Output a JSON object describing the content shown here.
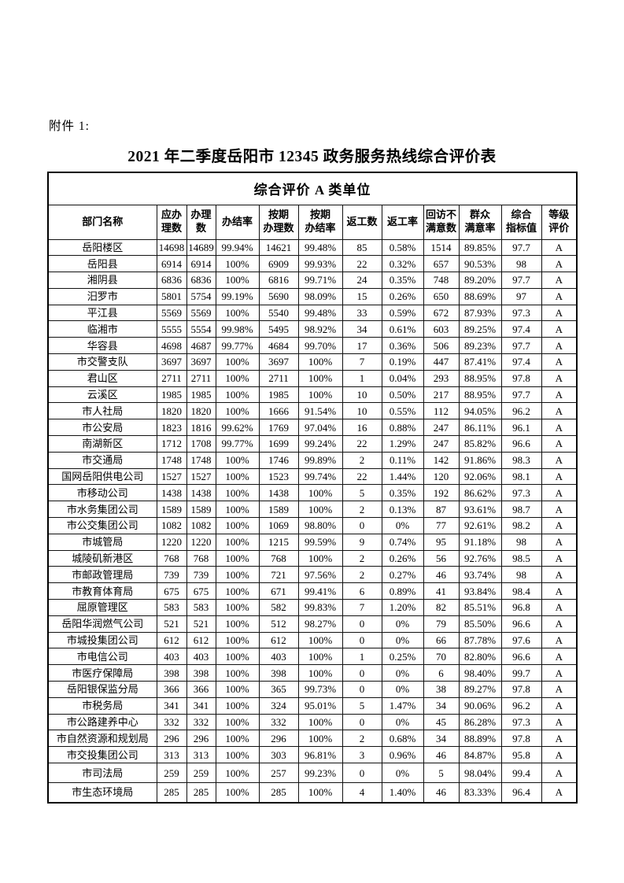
{
  "page": {
    "attachment_label": "附件 1:",
    "title": "2021 年二季度岳阳市 12345 政务服务热线综合评价表"
  },
  "table": {
    "group_header": "综合评价 A 类单位",
    "columns": [
      {
        "key": "department",
        "label": "部门名称"
      },
      {
        "key": "should_handle_count",
        "label": "应办\n理数"
      },
      {
        "key": "handled_count",
        "label": "办理\n数"
      },
      {
        "key": "completion_rate",
        "label": "办结率"
      },
      {
        "key": "ontime_handled_count",
        "label": "按期\n办理数"
      },
      {
        "key": "ontime_completion_rate",
        "label": "按期\n办结率"
      },
      {
        "key": "rework_count",
        "label": "返工数"
      },
      {
        "key": "rework_rate",
        "label": "返工率"
      },
      {
        "key": "revisit_unsatisfied",
        "label": "回访不\n满意数"
      },
      {
        "key": "satisfaction_rate",
        "label": "群众\n满意率"
      },
      {
        "key": "composite_index",
        "label": "综合\n指标值"
      },
      {
        "key": "grade",
        "label": "等级\n评价"
      }
    ],
    "rows": [
      [
        "岳阳楼区",
        "14698",
        "14689",
        "99.94%",
        "14621",
        "99.48%",
        "85",
        "0.58%",
        "1514",
        "89.85%",
        "97.7",
        "A"
      ],
      [
        "岳阳县",
        "6914",
        "6914",
        "100%",
        "6909",
        "99.93%",
        "22",
        "0.32%",
        "657",
        "90.53%",
        "98",
        "A"
      ],
      [
        "湘阴县",
        "6836",
        "6836",
        "100%",
        "6816",
        "99.71%",
        "24",
        "0.35%",
        "748",
        "89.20%",
        "97.7",
        "A"
      ],
      [
        "汨罗市",
        "5801",
        "5754",
        "99.19%",
        "5690",
        "98.09%",
        "15",
        "0.26%",
        "650",
        "88.69%",
        "97",
        "A"
      ],
      [
        "平江县",
        "5569",
        "5569",
        "100%",
        "5540",
        "99.48%",
        "33",
        "0.59%",
        "672",
        "87.93%",
        "97.3",
        "A"
      ],
      [
        "临湘市",
        "5555",
        "5554",
        "99.98%",
        "5495",
        "98.92%",
        "34",
        "0.61%",
        "603",
        "89.25%",
        "97.4",
        "A"
      ],
      [
        "华容县",
        "4698",
        "4687",
        "99.77%",
        "4684",
        "99.70%",
        "17",
        "0.36%",
        "506",
        "89.23%",
        "97.7",
        "A"
      ],
      [
        "市交警支队",
        "3697",
        "3697",
        "100%",
        "3697",
        "100%",
        "7",
        "0.19%",
        "447",
        "87.41%",
        "97.4",
        "A"
      ],
      [
        "君山区",
        "2711",
        "2711",
        "100%",
        "2711",
        "100%",
        "1",
        "0.04%",
        "293",
        "88.95%",
        "97.8",
        "A"
      ],
      [
        "云溪区",
        "1985",
        "1985",
        "100%",
        "1985",
        "100%",
        "10",
        "0.50%",
        "217",
        "88.95%",
        "97.7",
        "A"
      ],
      [
        "市人社局",
        "1820",
        "1820",
        "100%",
        "1666",
        "91.54%",
        "10",
        "0.55%",
        "112",
        "94.05%",
        "96.2",
        "A"
      ],
      [
        "市公安局",
        "1823",
        "1816",
        "99.62%",
        "1769",
        "97.04%",
        "16",
        "0.88%",
        "247",
        "86.11%",
        "96.1",
        "A"
      ],
      [
        "南湖新区",
        "1712",
        "1708",
        "99.77%",
        "1699",
        "99.24%",
        "22",
        "1.29%",
        "247",
        "85.82%",
        "96.6",
        "A"
      ],
      [
        "市交通局",
        "1748",
        "1748",
        "100%",
        "1746",
        "99.89%",
        "2",
        "0.11%",
        "142",
        "91.86%",
        "98.3",
        "A"
      ],
      [
        "国网岳阳供电公司",
        "1527",
        "1527",
        "100%",
        "1523",
        "99.74%",
        "22",
        "1.44%",
        "120",
        "92.06%",
        "98.1",
        "A"
      ],
      [
        "市移动公司",
        "1438",
        "1438",
        "100%",
        "1438",
        "100%",
        "5",
        "0.35%",
        "192",
        "86.62%",
        "97.3",
        "A"
      ],
      [
        "市水务集团公司",
        "1589",
        "1589",
        "100%",
        "1589",
        "100%",
        "2",
        "0.13%",
        "87",
        "93.61%",
        "98.7",
        "A"
      ],
      [
        "市公交集团公司",
        "1082",
        "1082",
        "100%",
        "1069",
        "98.80%",
        "0",
        "0%",
        "77",
        "92.61%",
        "98.2",
        "A"
      ],
      [
        "市城管局",
        "1220",
        "1220",
        "100%",
        "1215",
        "99.59%",
        "9",
        "0.74%",
        "95",
        "91.18%",
        "98",
        "A"
      ],
      [
        "城陵矶新港区",
        "768",
        "768",
        "100%",
        "768",
        "100%",
        "2",
        "0.26%",
        "56",
        "92.76%",
        "98.5",
        "A"
      ],
      [
        "市邮政管理局",
        "739",
        "739",
        "100%",
        "721",
        "97.56%",
        "2",
        "0.27%",
        "46",
        "93.74%",
        "98",
        "A"
      ],
      [
        "市教育体育局",
        "675",
        "675",
        "100%",
        "671",
        "99.41%",
        "6",
        "0.89%",
        "41",
        "93.84%",
        "98.4",
        "A"
      ],
      [
        "屈原管理区",
        "583",
        "583",
        "100%",
        "582",
        "99.83%",
        "7",
        "1.20%",
        "82",
        "85.51%",
        "96.8",
        "A"
      ],
      [
        "岳阳华润燃气公司",
        "521",
        "521",
        "100%",
        "512",
        "98.27%",
        "0",
        "0%",
        "79",
        "85.50%",
        "96.6",
        "A"
      ],
      [
        "市城投集团公司",
        "612",
        "612",
        "100%",
        "612",
        "100%",
        "0",
        "0%",
        "66",
        "87.78%",
        "97.6",
        "A"
      ],
      [
        "市电信公司",
        "403",
        "403",
        "100%",
        "403",
        "100%",
        "1",
        "0.25%",
        "70",
        "82.80%",
        "96.6",
        "A"
      ],
      [
        "市医疗保障局",
        "398",
        "398",
        "100%",
        "398",
        "100%",
        "0",
        "0%",
        "6",
        "98.40%",
        "99.7",
        "A"
      ],
      [
        "岳阳银保监分局",
        "366",
        "366",
        "100%",
        "365",
        "99.73%",
        "0",
        "0%",
        "38",
        "89.27%",
        "97.8",
        "A"
      ],
      [
        "市税务局",
        "341",
        "341",
        "100%",
        "324",
        "95.01%",
        "5",
        "1.47%",
        "34",
        "90.06%",
        "96.2",
        "A"
      ],
      [
        "市公路建养中心",
        "332",
        "332",
        "100%",
        "332",
        "100%",
        "0",
        "0%",
        "45",
        "86.28%",
        "97.3",
        "A"
      ],
      [
        "市自然资源和规划局",
        "296",
        "296",
        "100%",
        "296",
        "100%",
        "2",
        "0.68%",
        "34",
        "88.89%",
        "97.8",
        "A"
      ],
      [
        "市交投集团公司",
        "313",
        "313",
        "100%",
        "303",
        "96.81%",
        "3",
        "0.96%",
        "46",
        "84.87%",
        "95.8",
        "A"
      ],
      [
        "市司法局",
        "259",
        "259",
        "100%",
        "257",
        "99.23%",
        "0",
        "0%",
        "5",
        "98.04%",
        "99.4",
        "A"
      ],
      [
        "市生态环境局",
        "285",
        "285",
        "100%",
        "285",
        "100%",
        "4",
        "1.40%",
        "46",
        "83.33%",
        "96.4",
        "A"
      ]
    ]
  }
}
